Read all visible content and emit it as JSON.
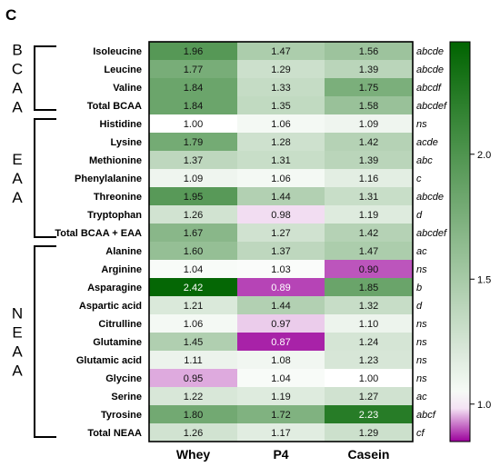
{
  "panel_label": "C",
  "colors": {
    "low": "#9b009b",
    "mid": "#ffffff",
    "high": "#006400"
  },
  "chart_data": {
    "type": "heatmap",
    "columns": [
      "Whey",
      "P4",
      "Casein"
    ],
    "rows": [
      "Isoleucine",
      "Leucine",
      "Valine",
      "Total BCAA",
      "Histidine",
      "Lysine",
      "Methionine",
      "Phenylalanine",
      "Threonine",
      "Tryptophan",
      "Total BCAA + EAA",
      "Alanine",
      "Arginine",
      "Asparagine",
      "Aspartic acid",
      "Citrulline",
      "Glutamine",
      "Glutamic acid",
      "Glycine",
      "Serine",
      "Tyrosine",
      "Total NEAA"
    ],
    "values": [
      [
        1.96,
        1.47,
        1.56
      ],
      [
        1.77,
        1.29,
        1.39
      ],
      [
        1.84,
        1.33,
        1.75
      ],
      [
        1.84,
        1.35,
        1.58
      ],
      [
        1.0,
        1.06,
        1.09
      ],
      [
        1.79,
        1.28,
        1.42
      ],
      [
        1.37,
        1.31,
        1.39
      ],
      [
        1.09,
        1.06,
        1.16
      ],
      [
        1.95,
        1.44,
        1.31
      ],
      [
        1.26,
        0.98,
        1.19
      ],
      [
        1.67,
        1.27,
        1.42
      ],
      [
        1.6,
        1.37,
        1.47
      ],
      [
        1.04,
        1.03,
        0.9
      ],
      [
        2.42,
        0.89,
        1.85
      ],
      [
        1.21,
        1.44,
        1.32
      ],
      [
        1.06,
        0.97,
        1.1
      ],
      [
        1.45,
        0.87,
        1.24
      ],
      [
        1.11,
        1.08,
        1.23
      ],
      [
        0.95,
        1.04,
        1.0
      ],
      [
        1.22,
        1.19,
        1.27
      ],
      [
        1.8,
        1.72,
        2.23
      ],
      [
        1.26,
        1.17,
        1.29
      ]
    ],
    "significance": [
      "abcde",
      "abcde",
      "abcdf",
      "abcdef",
      "ns",
      "acde",
      "abc",
      "c",
      "abcde",
      "d",
      "abcdef",
      "ac",
      "ns",
      "b",
      "d",
      "ns",
      "ns",
      "ns",
      "ns",
      "ac",
      "abcf",
      "cf"
    ],
    "groups": [
      {
        "letters": [
          "B",
          "C",
          "A",
          "A"
        ],
        "from": 0,
        "to": 3
      },
      {
        "letters": [
          "E",
          "A",
          "A"
        ],
        "from": 4,
        "to": 10
      },
      {
        "letters": [
          "N",
          "E",
          "A",
          "A"
        ],
        "from": 11,
        "to": 21
      }
    ],
    "colorbar": {
      "ticks": [
        "1.0",
        "1.5",
        "2.0"
      ],
      "tick_values": [
        1.0,
        1.5,
        2.0
      ],
      "min": 0.85,
      "max": 2.45,
      "center": 1.0
    }
  }
}
